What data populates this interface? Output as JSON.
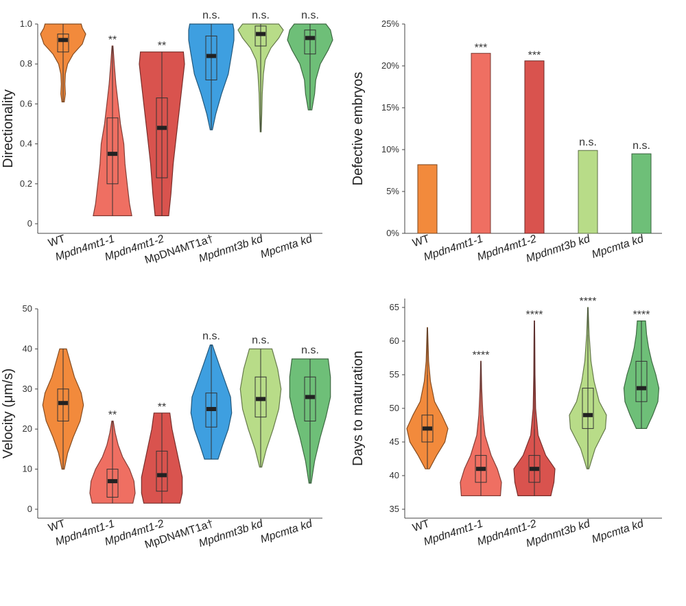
{
  "chart_data": [
    {
      "id": "directionality",
      "type": "violin",
      "ylabel": "Directionality",
      "ylim": [
        0,
        1.0
      ],
      "yticks": [
        0,
        0.2,
        0.4,
        0.6,
        0.8,
        1.0
      ],
      "ytick_labels": [
        "0",
        "0.2",
        "0.4",
        "0.6",
        "0.8",
        "1.0"
      ],
      "categories": [
        "WT",
        "Mpdn4mt1-1",
        "Mpdn4mt1-2",
        "MpDN4MT1a†",
        "Mpdnmt3b kd",
        "Mpcmta kd"
      ],
      "category_italic": [
        false,
        true,
        true,
        false,
        true,
        true
      ],
      "significance": [
        "",
        "**",
        "**",
        "n.s.",
        "n.s.",
        "n.s."
      ],
      "series": [
        {
          "min": 0.61,
          "q1": 0.86,
          "median": 0.92,
          "q3": 0.95,
          "max": 1.0,
          "density": [
            [
              0.61,
              0.05
            ],
            [
              0.65,
              0.1
            ],
            [
              0.7,
              0.08
            ],
            [
              0.75,
              0.1
            ],
            [
              0.8,
              0.2
            ],
            [
              0.85,
              0.45
            ],
            [
              0.9,
              0.85
            ],
            [
              0.95,
              1.0
            ],
            [
              0.98,
              0.85
            ],
            [
              1.0,
              0.8
            ]
          ]
        },
        {
          "min": 0.04,
          "q1": 0.2,
          "median": 0.35,
          "q3": 0.53,
          "max": 0.89,
          "density": [
            [
              0.04,
              0.85
            ],
            [
              0.1,
              0.75
            ],
            [
              0.2,
              0.65
            ],
            [
              0.3,
              0.55
            ],
            [
              0.4,
              0.5
            ],
            [
              0.5,
              0.35
            ],
            [
              0.6,
              0.25
            ],
            [
              0.7,
              0.15
            ],
            [
              0.8,
              0.08
            ],
            [
              0.89,
              0.02
            ]
          ]
        },
        {
          "min": 0.04,
          "q1": 0.23,
          "median": 0.48,
          "q3": 0.63,
          "max": 0.86,
          "density": [
            [
              0.04,
              0.3
            ],
            [
              0.15,
              0.4
            ],
            [
              0.3,
              0.5
            ],
            [
              0.45,
              0.65
            ],
            [
              0.6,
              0.8
            ],
            [
              0.7,
              0.9
            ],
            [
              0.8,
              1.0
            ],
            [
              0.86,
              0.95
            ]
          ]
        },
        {
          "min": 0.47,
          "q1": 0.72,
          "median": 0.84,
          "q3": 0.94,
          "max": 1.0,
          "density": [
            [
              0.47,
              0.05
            ],
            [
              0.55,
              0.2
            ],
            [
              0.65,
              0.45
            ],
            [
              0.75,
              0.75
            ],
            [
              0.85,
              0.9
            ],
            [
              0.92,
              1.0
            ],
            [
              0.97,
              1.0
            ],
            [
              1.0,
              0.95
            ]
          ]
        },
        {
          "min": 0.46,
          "q1": 0.89,
          "median": 0.95,
          "q3": 0.99,
          "max": 1.0,
          "density": [
            [
              0.46,
              0.02
            ],
            [
              0.55,
              0.05
            ],
            [
              0.65,
              0.07
            ],
            [
              0.75,
              0.12
            ],
            [
              0.82,
              0.2
            ],
            [
              0.88,
              0.45
            ],
            [
              0.93,
              0.8
            ],
            [
              0.97,
              1.0
            ],
            [
              1.0,
              0.8
            ]
          ]
        },
        {
          "min": 0.57,
          "q1": 0.85,
          "median": 0.93,
          "q3": 0.97,
          "max": 1.0,
          "density": [
            [
              0.57,
              0.08
            ],
            [
              0.65,
              0.2
            ],
            [
              0.72,
              0.25
            ],
            [
              0.8,
              0.45
            ],
            [
              0.87,
              0.8
            ],
            [
              0.92,
              1.0
            ],
            [
              0.97,
              0.9
            ],
            [
              1.0,
              0.7
            ]
          ]
        }
      ]
    },
    {
      "id": "defective",
      "type": "bar",
      "ylabel": "Defective embryos",
      "ylim": [
        0,
        25
      ],
      "yticks": [
        0,
        5,
        10,
        15,
        20,
        25
      ],
      "ytick_labels": [
        "0%",
        "5%",
        "10%",
        "15%",
        "20%",
        "25%"
      ],
      "categories": [
        "WT",
        "Mpdn4mt1-1",
        "Mpdn4mt1-2",
        "Mpdnmt3b kd",
        "Mpcmta kd"
      ],
      "category_italic": [
        false,
        true,
        true,
        true,
        true
      ],
      "significance": [
        "",
        "***",
        "***",
        "n.s.",
        "n.s."
      ],
      "values": [
        8.2,
        21.5,
        20.6,
        9.9,
        9.5
      ]
    },
    {
      "id": "velocity",
      "type": "violin",
      "ylabel": "Velocity (μm/s)",
      "ylim": [
        0,
        50
      ],
      "yticks": [
        0,
        10,
        20,
        30,
        40,
        50
      ],
      "ytick_labels": [
        "0",
        "10",
        "20",
        "30",
        "40",
        "50"
      ],
      "categories": [
        "WT",
        "Mpdn4mt1-1",
        "Mpdn4mt1-2",
        "MpDN4MT1a†",
        "Mpdnmt3b kd",
        "Mpcmta kd"
      ],
      "category_italic": [
        false,
        true,
        true,
        false,
        true,
        true
      ],
      "significance": [
        "",
        "**",
        "**",
        "n.s.",
        "n.s.",
        "n.s."
      ],
      "series": [
        {
          "min": 10,
          "q1": 22,
          "median": 26.5,
          "q3": 30,
          "max": 40,
          "density": [
            [
              10,
              0.05
            ],
            [
              14,
              0.2
            ],
            [
              18,
              0.45
            ],
            [
              22,
              0.75
            ],
            [
              26,
              0.9
            ],
            [
              29,
              0.8
            ],
            [
              33,
              0.5
            ],
            [
              37,
              0.3
            ],
            [
              40,
              0.15
            ]
          ]
        },
        {
          "min": 1.5,
          "q1": 3,
          "median": 7,
          "q3": 10,
          "max": 22,
          "density": [
            [
              1.5,
              0.9
            ],
            [
              4,
              1.0
            ],
            [
              7,
              0.95
            ],
            [
              10,
              0.75
            ],
            [
              13,
              0.45
            ],
            [
              16,
              0.25
            ],
            [
              19,
              0.12
            ],
            [
              22,
              0.03
            ]
          ]
        },
        {
          "min": 1.5,
          "q1": 4.5,
          "median": 8.5,
          "q3": 14.5,
          "max": 24,
          "density": [
            [
              1.5,
              0.8
            ],
            [
              4,
              0.9
            ],
            [
              8,
              0.9
            ],
            [
              12,
              0.75
            ],
            [
              16,
              0.6
            ],
            [
              20,
              0.45
            ],
            [
              24,
              0.35
            ]
          ]
        },
        {
          "min": 12.5,
          "q1": 20.5,
          "median": 25,
          "q3": 29,
          "max": 41,
          "density": [
            [
              12.5,
              0.3
            ],
            [
              16,
              0.5
            ],
            [
              20,
              0.75
            ],
            [
              24,
              0.9
            ],
            [
              28,
              0.85
            ],
            [
              32,
              0.6
            ],
            [
              36,
              0.35
            ],
            [
              41,
              0.05
            ]
          ]
        },
        {
          "min": 10.5,
          "q1": 23,
          "median": 27.5,
          "q3": 33,
          "max": 40,
          "density": [
            [
              10.5,
              0.05
            ],
            [
              15,
              0.25
            ],
            [
              20,
              0.55
            ],
            [
              25,
              0.8
            ],
            [
              30,
              0.9
            ],
            [
              35,
              0.75
            ],
            [
              40,
              0.5
            ]
          ]
        },
        {
          "min": 6.5,
          "q1": 22,
          "median": 28,
          "q3": 33,
          "max": 37.5,
          "density": [
            [
              6.5,
              0.05
            ],
            [
              12,
              0.2
            ],
            [
              18,
              0.45
            ],
            [
              23,
              0.7
            ],
            [
              28,
              0.9
            ],
            [
              33,
              0.9
            ],
            [
              37.5,
              0.8
            ]
          ]
        }
      ]
    },
    {
      "id": "maturation",
      "type": "violin",
      "ylabel": "Days to maturation",
      "ylim": [
        35,
        65
      ],
      "yticks": [
        35,
        40,
        45,
        50,
        55,
        60,
        65
      ],
      "ytick_labels": [
        "35",
        "40",
        "45",
        "50",
        "55",
        "60",
        "65"
      ],
      "categories": [
        "WT",
        "Mpdn4mt1-1",
        "Mpdn4mt1-2",
        "Mpdnmt3b kd",
        "Mpcmta kd"
      ],
      "category_italic": [
        false,
        true,
        true,
        true,
        true
      ],
      "significance": [
        "",
        "****",
        "****",
        "****",
        "****"
      ],
      "series": [
        {
          "min": 41,
          "q1": 45,
          "median": 47,
          "q3": 49,
          "max": 55,
          "tail": 62,
          "density": [
            [
              41,
              0.1
            ],
            [
              43,
              0.45
            ],
            [
              45,
              0.85
            ],
            [
              47,
              1.0
            ],
            [
              49,
              0.7
            ],
            [
              51,
              0.35
            ],
            [
              54,
              0.15
            ],
            [
              57,
              0.06
            ],
            [
              62,
              0.01
            ]
          ]
        },
        {
          "min": 37,
          "q1": 39,
          "median": 41,
          "q3": 43,
          "max": 49,
          "tail": 57,
          "density": [
            [
              37,
              0.95
            ],
            [
              39,
              1.0
            ],
            [
              41,
              0.8
            ],
            [
              43,
              0.5
            ],
            [
              46,
              0.2
            ],
            [
              49,
              0.1
            ],
            [
              53,
              0.04
            ],
            [
              57,
              0.01
            ]
          ]
        },
        {
          "min": 37,
          "q1": 39,
          "median": 41,
          "q3": 43,
          "max": 47,
          "tail": 63,
          "density": [
            [
              37,
              0.8
            ],
            [
              39,
              0.95
            ],
            [
              41,
              1.0
            ],
            [
              43,
              0.55
            ],
            [
              46,
              0.18
            ],
            [
              50,
              0.06
            ],
            [
              55,
              0.03
            ],
            [
              60,
              0.02
            ],
            [
              63,
              0.01
            ]
          ]
        },
        {
          "min": 41,
          "q1": 47,
          "median": 49,
          "q3": 53,
          "max": 61,
          "tail": 65,
          "density": [
            [
              41,
              0.05
            ],
            [
              44,
              0.35
            ],
            [
              47,
              0.85
            ],
            [
              49,
              0.9
            ],
            [
              51,
              0.55
            ],
            [
              54,
              0.3
            ],
            [
              57,
              0.15
            ],
            [
              61,
              0.06
            ],
            [
              65,
              0.01
            ]
          ]
        },
        {
          "min": 47,
          "q1": 51,
          "median": 53,
          "q3": 57,
          "max": 63,
          "density": [
            [
              47,
              0.25
            ],
            [
              49,
              0.55
            ],
            [
              51,
              0.8
            ],
            [
              53,
              0.85
            ],
            [
              55,
              0.7
            ],
            [
              57,
              0.5
            ],
            [
              59,
              0.35
            ],
            [
              61,
              0.25
            ],
            [
              63,
              0.2
            ]
          ]
        }
      ]
    }
  ],
  "colors": [
    "#F28A3C",
    "#EF6F62",
    "#D9534E",
    "#3E9FE0",
    "#B8DC88",
    "#6EBF78"
  ],
  "colors_5": [
    "#F28A3C",
    "#EF6F62",
    "#D9534E",
    "#B8DC88",
    "#6EBF78"
  ]
}
